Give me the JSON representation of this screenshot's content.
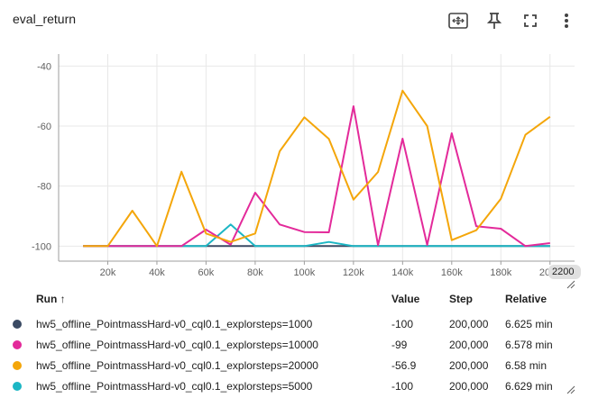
{
  "card": {
    "title": "eval_return"
  },
  "toolbar": {
    "icons": [
      "fit-domain-icon",
      "pin-icon",
      "fullscreen-icon",
      "more-vert-icon"
    ]
  },
  "chart_data": {
    "type": "line",
    "title": "eval_return",
    "xlabel": "",
    "ylabel": "",
    "xlim": [
      0,
      210000
    ],
    "ylim": [
      -105,
      -36
    ],
    "x_ticks": [
      20000,
      40000,
      60000,
      80000,
      100000,
      120000,
      140000,
      160000,
      180000,
      200000
    ],
    "x_tick_labels": [
      "20k",
      "40k",
      "60k",
      "80k",
      "100k",
      "120k",
      "140k",
      "160k",
      "180k",
      "200k"
    ],
    "y_ticks": [
      -40,
      -60,
      -80,
      -100
    ],
    "y_tick_labels": [
      "-40",
      "-60",
      "-80",
      "-100"
    ],
    "cut_off_tick_label": "2200",
    "grid": true,
    "series": [
      {
        "name": "hw5_offline_PointmassHard-v0_cql0.1_explorsteps=1000",
        "color": "#3a4a63",
        "x": [
          10000,
          20000,
          30000,
          40000,
          50000,
          60000,
          70000,
          80000,
          90000,
          100000,
          110000,
          120000,
          130000,
          140000,
          150000,
          160000,
          170000,
          180000,
          190000,
          200000
        ],
        "y": [
          -100,
          -100,
          -100,
          -100,
          -100,
          -100,
          -100,
          -100,
          -100,
          -100,
          -100,
          -100,
          -100,
          -100,
          -100,
          -100,
          -100,
          -100,
          -100,
          -100
        ]
      },
      {
        "name": "hw5_offline_PointmassHard-v0_cql0.1_explorsteps=10000",
        "color": "#e32a9a",
        "x": [
          10000,
          20000,
          30000,
          40000,
          50000,
          60000,
          70000,
          80000,
          90000,
          100000,
          110000,
          120000,
          130000,
          140000,
          150000,
          160000,
          170000,
          180000,
          190000,
          200000
        ],
        "y": [
          -100,
          -100,
          -100,
          -100,
          -100,
          -94.5,
          -99.5,
          -82.2,
          -92.8,
          -95.3,
          -95.4,
          -53.4,
          -99.7,
          -64.2,
          -99.6,
          -62.4,
          -93.4,
          -94.2,
          -100,
          -99
        ]
      },
      {
        "name": "hw5_offline_PointmassHard-v0_cql0.1_explorsteps=20000",
        "color": "#f4a60a",
        "x": [
          10000,
          20000,
          30000,
          40000,
          50000,
          60000,
          70000,
          80000,
          90000,
          100000,
          110000,
          120000,
          130000,
          140000,
          150000,
          160000,
          170000,
          180000,
          190000,
          200000
        ],
        "y": [
          -100,
          -100,
          -88.2,
          -100,
          -75.2,
          -95.8,
          -98.6,
          -95.8,
          -68.4,
          -57.1,
          -64.3,
          -84.5,
          -75.3,
          -48.2,
          -60,
          -98,
          -94.7,
          -84.2,
          -62.9,
          -56.9
        ]
      },
      {
        "name": "hw5_offline_PointmassHard-v0_cql0.1_explorsteps=5000",
        "color": "#1cb6c4",
        "x": [
          10000,
          20000,
          30000,
          40000,
          50000,
          60000,
          70000,
          80000,
          90000,
          100000,
          110000,
          120000,
          130000,
          140000,
          150000,
          160000,
          170000,
          180000,
          190000,
          200000
        ],
        "y": [
          -100,
          -100,
          -100,
          -100,
          -100,
          -100,
          -92.8,
          -100,
          -100,
          -100,
          -98.6,
          -100,
          -100,
          -100,
          -100,
          -100,
          -100,
          -100,
          -100,
          -100
        ]
      }
    ]
  },
  "table": {
    "headers": {
      "run": "Run",
      "sort_indicator": "↑",
      "value": "Value",
      "step": "Step",
      "relative": "Relative"
    },
    "rows": [
      {
        "color": "#3a4a63",
        "run": "hw5_offline_PointmassHard-v0_cql0.1_explorsteps=1000",
        "value": "-100",
        "step": "200,000",
        "relative": "6.625 min"
      },
      {
        "color": "#e32a9a",
        "run": "hw5_offline_PointmassHard-v0_cql0.1_explorsteps=10000",
        "value": "-99",
        "step": "200,000",
        "relative": "6.578 min"
      },
      {
        "color": "#f4a60a",
        "run": "hw5_offline_PointmassHard-v0_cql0.1_explorsteps=20000",
        "value": "-56.9",
        "step": "200,000",
        "relative": "6.58 min"
      },
      {
        "color": "#1cb6c4",
        "run": "hw5_offline_PointmassHard-v0_cql0.1_explorsteps=5000",
        "value": "-100",
        "step": "200,000",
        "relative": "6.629 min"
      }
    ]
  }
}
